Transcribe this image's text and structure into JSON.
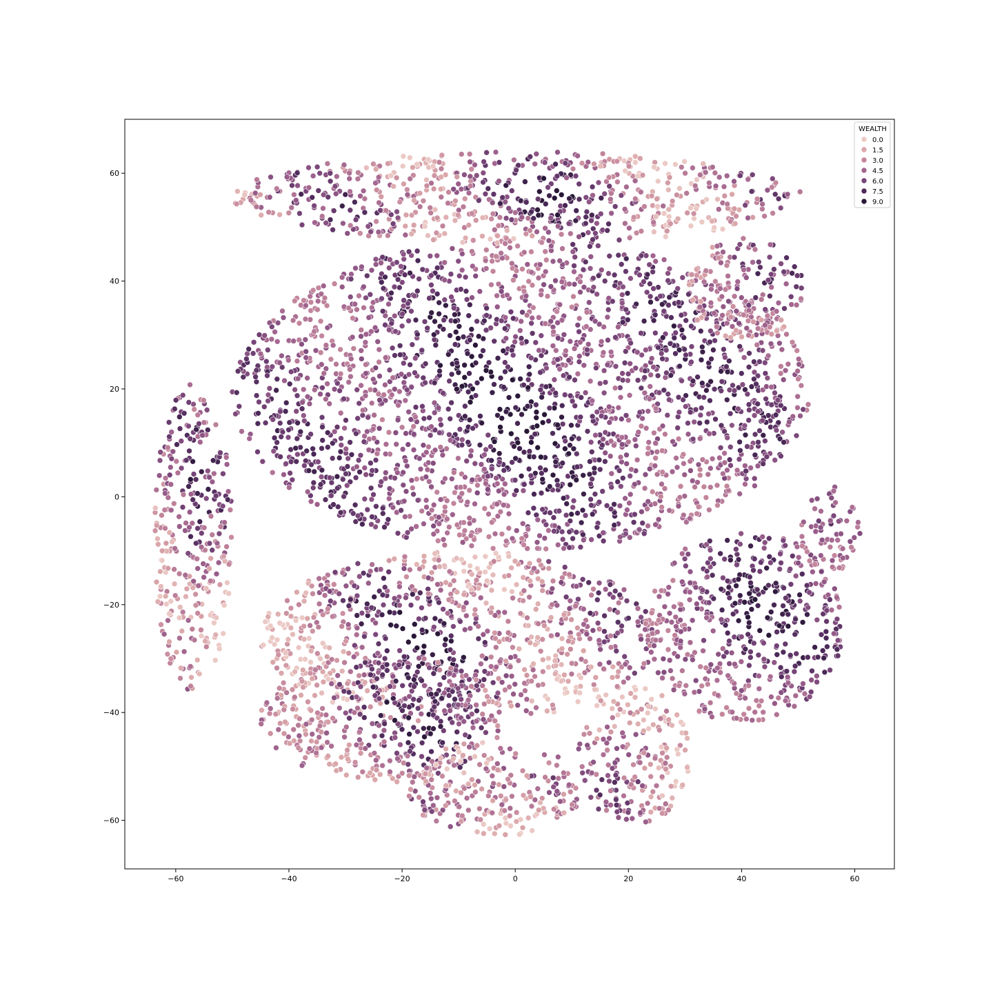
{
  "chart_data": {
    "type": "scatter",
    "title": "",
    "xlabel": "",
    "ylabel": "",
    "xlim": [
      -69,
      67
    ],
    "ylim": [
      -69,
      70
    ],
    "x_ticks": [
      -60,
      -40,
      -20,
      0,
      20,
      40,
      60
    ],
    "y_ticks": [
      -60,
      -40,
      -20,
      0,
      20,
      40,
      60
    ],
    "x_tick_labels": [
      "−60",
      "−40",
      "−20",
      "0",
      "20",
      "40",
      "60"
    ],
    "y_tick_labels": [
      "−60",
      "−40",
      "−20",
      "0",
      "20",
      "40",
      "60"
    ],
    "grid": false,
    "legend": {
      "title": "WEALTH",
      "placement": "top-right",
      "entries": [
        {
          "label": "0.0",
          "value": 0.0,
          "color": "#ebc9c5"
        },
        {
          "label": "1.5",
          "value": 1.5,
          "color": "#dba7aa"
        },
        {
          "label": "3.0",
          "value": 3.0,
          "color": "#c3869c"
        },
        {
          "label": "4.5",
          "value": 4.5,
          "color": "#a1648f"
        },
        {
          "label": "6.0",
          "value": 6.0,
          "color": "#764478"
        },
        {
          "label": "7.5",
          "value": 7.5,
          "color": "#4b2958"
        },
        {
          "label": "9.0",
          "value": 9.0,
          "color": "#2a1838"
        }
      ]
    },
    "hue_variable": "WEALTH",
    "hue_range": [
      0,
      9
    ],
    "clusters": [
      {
        "region": "main-body",
        "x_range": [
          -50,
          52
        ],
        "y_range": [
          -10,
          48
        ],
        "dominant_wealth": [
          3.0,
          9.0
        ]
      },
      {
        "region": "lower-center",
        "x_range": [
          -45,
          25
        ],
        "y_range": [
          -42,
          -10
        ],
        "dominant_wealth": [
          0.0,
          9.0
        ]
      },
      {
        "region": "lower-left",
        "x_range": [
          -45,
          -2
        ],
        "y_range": [
          -53,
          -29
        ],
        "dominant_wealth": [
          1.5,
          9.0
        ]
      },
      {
        "region": "lower-right",
        "x_range": [
          23,
          58
        ],
        "y_range": [
          -42,
          -6
        ],
        "dominant_wealth": [
          3.0,
          9.0
        ]
      },
      {
        "region": "right-arm",
        "x_range": [
          50,
          61
        ],
        "y_range": [
          -14,
          2
        ],
        "dominant_wealth": [
          3.0,
          9.0
        ]
      },
      {
        "region": "bottom-center",
        "x_range": [
          -19,
          12
        ],
        "y_range": [
          -63,
          -45
        ],
        "dominant_wealth": [
          0.0,
          9.0
        ]
      },
      {
        "region": "bottom-right",
        "x_range": [
          11,
          31
        ],
        "y_range": [
          -61,
          -35
        ],
        "dominant_wealth": [
          0.0,
          9.0
        ]
      },
      {
        "region": "top-fragments",
        "x_range": [
          -50,
          51
        ],
        "y_range": [
          47,
          64
        ],
        "dominant_wealth": [
          0.0,
          9.0
        ]
      },
      {
        "region": "upper-right",
        "x_range": [
          30,
          51
        ],
        "y_range": [
          29,
          48
        ],
        "dominant_wealth": [
          1.5,
          9.0
        ]
      },
      {
        "region": "left-strands",
        "x_range": [
          -64,
          -50
        ],
        "y_range": [
          -36,
          21
        ],
        "dominant_wealth": [
          0.0,
          9.0
        ]
      }
    ]
  }
}
